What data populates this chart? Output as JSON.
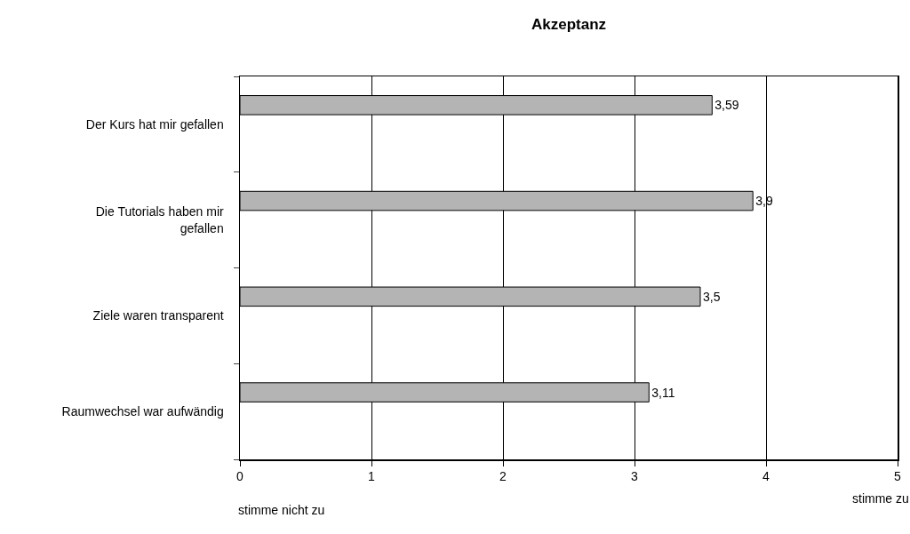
{
  "chart_data": {
    "type": "bar",
    "orientation": "horizontal",
    "title": "Akzeptanz",
    "categories": [
      "Der Kurs hat mir gefallen",
      "Die Tutorials haben mir gefallen",
      "Ziele waren transparent",
      "Raumwechsel war aufwändig"
    ],
    "values": [
      3.59,
      3.9,
      3.5,
      3.11
    ],
    "value_labels": [
      "3,59",
      "3,9",
      "3,5",
      "3,11"
    ],
    "color": "#b4b4b4",
    "xlim": [
      0,
      5
    ],
    "xticks": [
      0,
      1,
      2,
      3,
      4,
      5
    ],
    "grid": "x",
    "annotations": [
      "stimme nicht zu",
      "stimme zu"
    ]
  }
}
